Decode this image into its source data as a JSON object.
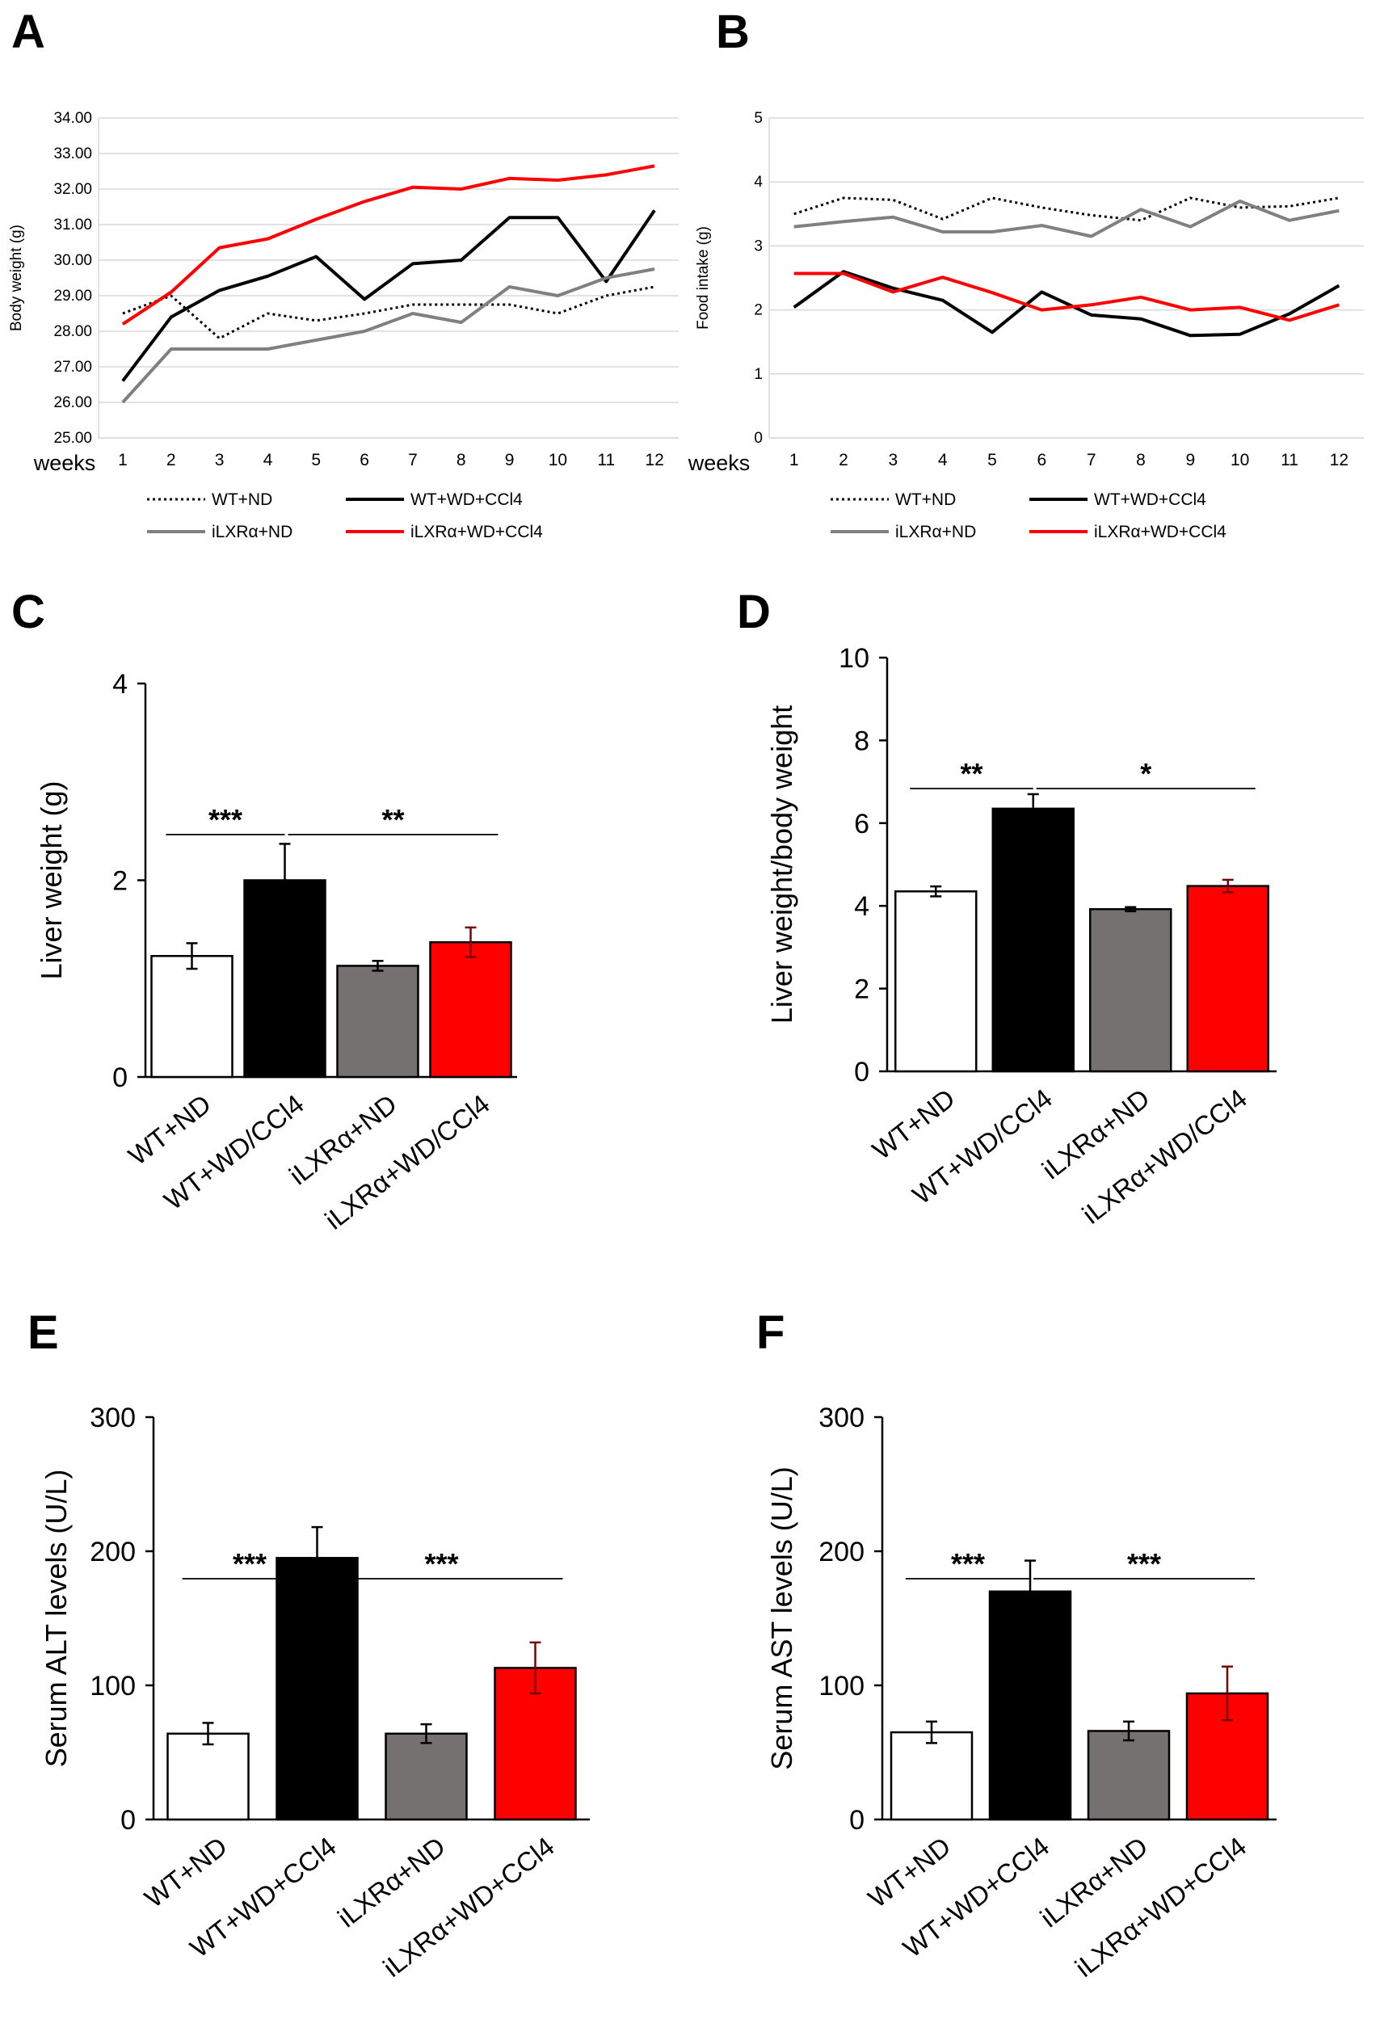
{
  "colors": {
    "black": "#000000",
    "gray": "#808080",
    "bar_gray": "#767171",
    "red": "#ff0000",
    "white": "#ffffff",
    "grid": "#d9d9d9"
  },
  "chart_data": [
    {
      "panel_label": "A",
      "type": "line",
      "ylabel": "Body weight (g)",
      "xlabel": "weeks",
      "x": [
        1,
        2,
        3,
        4,
        5,
        6,
        7,
        8,
        9,
        10,
        11,
        12
      ],
      "ylim": [
        25.0,
        34.0
      ],
      "yticks": [
        "25.00",
        "26.00",
        "27.00",
        "28.00",
        "29.00",
        "30.00",
        "31.00",
        "32.00",
        "33.00",
        "34.00"
      ],
      "grid": true,
      "legend": "bottom",
      "series": [
        {
          "name": "WT+ND",
          "color": "#000000",
          "style": "dotted",
          "values": [
            28.5,
            29.0,
            27.8,
            28.5,
            28.3,
            28.5,
            28.75,
            28.75,
            28.75,
            28.5,
            29.0,
            29.25
          ]
        },
        {
          "name": "WT+WD+CCl4",
          "color": "#000000",
          "style": "solid",
          "values": [
            26.6,
            28.4,
            29.15,
            29.55,
            30.1,
            28.9,
            29.9,
            30.0,
            31.2,
            31.2,
            29.4,
            31.4
          ]
        },
        {
          "name": "iLXRα+ND",
          "color": "#808080",
          "style": "solid",
          "values": [
            26.0,
            27.5,
            27.5,
            27.5,
            27.75,
            28.0,
            28.5,
            28.25,
            29.25,
            29.0,
            29.5,
            29.75
          ]
        },
        {
          "name": "iLXRα+WD+CCl4",
          "color": "#ff0000",
          "style": "solid",
          "values": [
            28.2,
            29.1,
            30.35,
            30.6,
            31.15,
            31.65,
            32.05,
            32.0,
            32.3,
            32.25,
            32.4,
            32.65
          ]
        }
      ]
    },
    {
      "panel_label": "B",
      "type": "line",
      "ylabel": "Food intake (g)",
      "xlabel": "weeks",
      "x": [
        1,
        2,
        3,
        4,
        5,
        6,
        7,
        8,
        9,
        10,
        11,
        12
      ],
      "ylim": [
        0,
        5
      ],
      "yticks": [
        "0",
        "1",
        "2",
        "3",
        "4",
        "5"
      ],
      "grid": true,
      "legend": "bottom",
      "series": [
        {
          "name": "WT+ND",
          "color": "#000000",
          "style": "dotted",
          "values": [
            3.5,
            3.75,
            3.72,
            3.42,
            3.75,
            3.6,
            3.48,
            3.4,
            3.75,
            3.6,
            3.62,
            3.75
          ]
        },
        {
          "name": "WT+WD+CCl4",
          "color": "#000000",
          "style": "solid",
          "values": [
            2.04,
            2.6,
            2.34,
            2.15,
            1.65,
            2.28,
            1.92,
            1.86,
            1.6,
            1.62,
            1.94,
            2.38
          ]
        },
        {
          "name": "iLXRα+ND",
          "color": "#808080",
          "style": "solid",
          "values": [
            3.3,
            3.38,
            3.45,
            3.22,
            3.22,
            3.32,
            3.15,
            3.57,
            3.3,
            3.7,
            3.4,
            3.55
          ]
        },
        {
          "name": "iLXRα+WD+CCl4",
          "color": "#ff0000",
          "style": "solid",
          "values": [
            2.57,
            2.57,
            2.28,
            2.51,
            2.27,
            2.0,
            2.08,
            2.2,
            2.0,
            2.04,
            1.84,
            2.08
          ]
        }
      ]
    },
    {
      "panel_label": "C",
      "type": "bar",
      "ylabel": "Liver weight (g)",
      "categories": [
        "WT+ND",
        "WT+WD/CCl4",
        "iLXRα+ND",
        "iLXRα+WD/CCl4"
      ],
      "values": [
        1.23,
        2.0,
        1.13,
        1.37
      ],
      "errors": [
        0.13,
        0.37,
        0.05,
        0.15
      ],
      "ylim": [
        0,
        4
      ],
      "yticks": [
        "0",
        "2",
        "4"
      ],
      "significance": [
        {
          "from": 0,
          "to": 1,
          "label": "***"
        },
        {
          "from": 1,
          "to": 3,
          "label": "**"
        }
      ]
    },
    {
      "panel_label": "D",
      "type": "bar",
      "ylabel": "Liver weight/body  weight",
      "categories": [
        "WT+ND",
        "WT+WD/CCl4",
        "iLXRα+ND",
        "iLXRα+WD/CCl4"
      ],
      "values": [
        4.35,
        6.35,
        3.92,
        4.48
      ],
      "errors": [
        0.12,
        0.35,
        0.05,
        0.15
      ],
      "ylim": [
        0,
        10
      ],
      "yticks": [
        "0",
        "2",
        "4",
        "6",
        "8",
        "10"
      ],
      "significance": [
        {
          "from": 0,
          "to": 1,
          "label": "**"
        },
        {
          "from": 1,
          "to": 3,
          "label": "*"
        }
      ]
    },
    {
      "panel_label": "E",
      "type": "bar",
      "ylabel": "Serum ALT levels (U/L)",
      "categories": [
        "WT+ND",
        "WT+WD+CCl4",
        "iLXRα+ND",
        "iLXRα+WD+CCl4"
      ],
      "values": [
        64,
        195,
        64,
        113
      ],
      "errors": [
        8,
        23,
        7,
        19
      ],
      "ylim": [
        0,
        300
      ],
      "yticks": [
        "0",
        "100",
        "200",
        "300"
      ],
      "significance": [
        {
          "from": 0,
          "to": 1,
          "label": "***"
        },
        {
          "from": 1,
          "to": 3,
          "label": "***"
        }
      ]
    },
    {
      "panel_label": "F",
      "type": "bar",
      "ylabel": "Serum AST levels (U/L)",
      "categories": [
        "WT+ND",
        "WT+WD+CCl4",
        "iLXRα+ND",
        "iLXRα+WD+CCl4"
      ],
      "values": [
        65,
        170,
        66,
        94
      ],
      "errors": [
        8,
        23,
        7,
        20
      ],
      "ylim": [
        0,
        300
      ],
      "yticks": [
        "0",
        "100",
        "200",
        "300"
      ],
      "significance": [
        {
          "from": 0,
          "to": 1,
          "label": "***"
        },
        {
          "from": 1,
          "to": 3,
          "label": "***"
        }
      ]
    }
  ]
}
